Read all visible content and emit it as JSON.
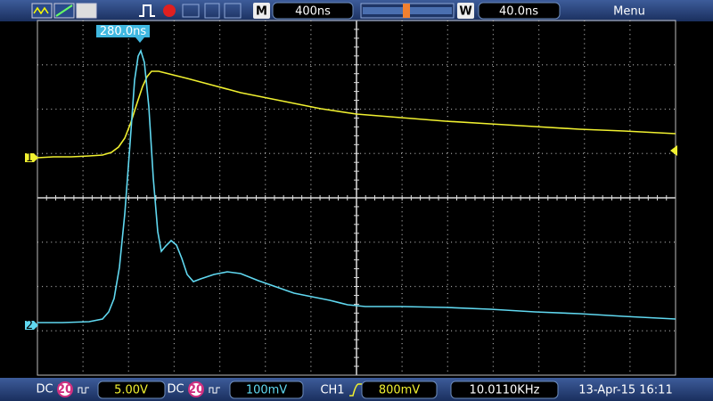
{
  "top_bar": {
    "time_base_label": "M",
    "time_base": "400ns",
    "window_label": "W",
    "window": "40.0ns",
    "menu": "Menu"
  },
  "cursor_label": "280.0ns",
  "channel_markers": [
    "1",
    "2"
  ],
  "bottom_bar": {
    "ch1": {
      "coupling": "DC",
      "bandwidth": "20",
      "scale": "5.00V"
    },
    "ch2": {
      "coupling": "DC",
      "bandwidth": "20",
      "scale": "100mV"
    },
    "trigger": {
      "source": "CH1",
      "level": "800mV"
    },
    "frequency": "10.0110KHz",
    "datetime": "13-Apr-15 16:11"
  }
}
